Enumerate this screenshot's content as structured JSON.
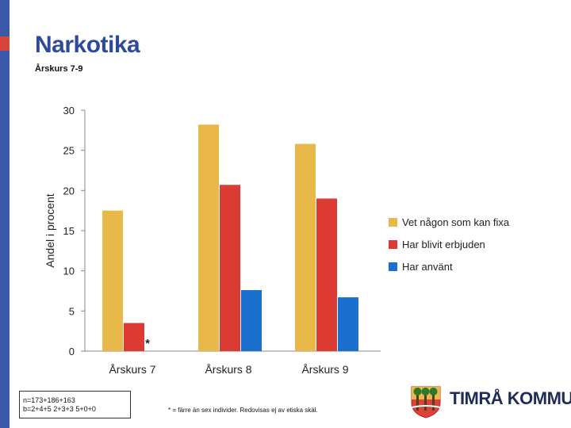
{
  "header": {
    "title": "Narkotika",
    "subtitle": "Årskurs 7-9"
  },
  "chart_data": {
    "type": "bar",
    "categories": [
      "Årskurs 7",
      "Årskurs 8",
      "Årskurs 9"
    ],
    "ylabel": "Andel i procent",
    "ylim": [
      0,
      30
    ],
    "yticks": [
      "0",
      "5",
      "10",
      "15",
      "20",
      "25",
      "30"
    ],
    "grid": false,
    "legend_position": "right",
    "series": [
      {
        "name": "Vet någon som kan fixa",
        "values": [
          17.5,
          28.2,
          25.8
        ],
        "color": "#e8b84a"
      },
      {
        "name": "Har blivit erbjuden",
        "values": [
          3.5,
          20.7,
          19.0
        ],
        "color": "#dc3b34"
      },
      {
        "name": "Har använt",
        "values": [
          0,
          7.6,
          6.7
        ],
        "color": "#1a6fcf"
      }
    ],
    "annotations": [
      {
        "category": "Årskurs 7",
        "series": "Har använt",
        "text": "*"
      }
    ]
  },
  "notes": {
    "sample_line1": "n=173+186+163",
    "sample_line2": "b=2+4+5 2+3+3 5+0+0",
    "footnote": "* = färre än sex individer. Redovisas ej av etiska skäl."
  },
  "logo": {
    "name": "TIMRÅ KOMMUN",
    "icon": "coat-of-arms-icon"
  }
}
